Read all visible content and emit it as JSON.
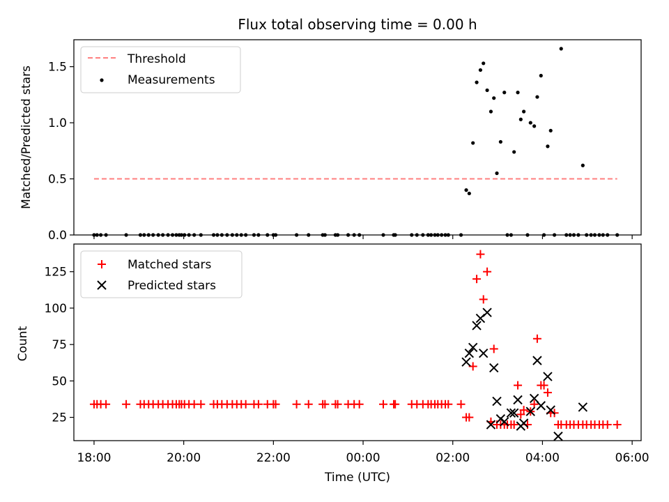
{
  "figure": {
    "title": "Flux total observing time = 0.00 h"
  },
  "chart_data": [
    {
      "type": "scatter",
      "xlabel": "",
      "ylabel": "Matched/Predicted stars",
      "xlim": [
        "17:33",
        "06:12"
      ],
      "ylim": [
        0.0,
        1.74
      ],
      "yticks": [
        0.0,
        0.5,
        1.0,
        1.5
      ],
      "ytick_labels": [
        "0.0",
        "0.5",
        "1.0",
        "1.5"
      ],
      "grid": false,
      "legend": "top-left",
      "threshold": {
        "name": "Threshold",
        "value": 0.5,
        "x_start": "18:00",
        "x_end": "05:40",
        "color": "#ff7f7f",
        "style": "dashed"
      },
      "series": [
        {
          "name": "Measurements",
          "marker": "dot",
          "color": "#000000",
          "points": [
            [
              "18:00",
              0
            ],
            [
              "18:04",
              0
            ],
            [
              "18:09",
              0
            ],
            [
              "18:16",
              0
            ],
            [
              "18:43",
              0
            ],
            [
              "19:02",
              0
            ],
            [
              "19:07",
              0
            ],
            [
              "19:13",
              0
            ],
            [
              "19:19",
              0
            ],
            [
              "19:26",
              0
            ],
            [
              "19:32",
              0
            ],
            [
              "19:39",
              0
            ],
            [
              "19:45",
              0
            ],
            [
              "19:50",
              0
            ],
            [
              "19:54",
              0
            ],
            [
              "19:57",
              0
            ],
            [
              "20:01",
              0
            ],
            [
              "20:07",
              0
            ],
            [
              "20:14",
              0
            ],
            [
              "20:23",
              0
            ],
            [
              "20:40",
              0
            ],
            [
              "20:45",
              0
            ],
            [
              "20:51",
              0
            ],
            [
              "20:58",
              0
            ],
            [
              "21:05",
              0
            ],
            [
              "21:11",
              0
            ],
            [
              "21:17",
              0
            ],
            [
              "21:23",
              0
            ],
            [
              "21:34",
              0
            ],
            [
              "21:40",
              0
            ],
            [
              "21:52",
              0
            ],
            [
              "22:00",
              0
            ],
            [
              "22:03",
              0
            ],
            [
              "22:31",
              0
            ],
            [
              "22:47",
              0
            ],
            [
              "23:06",
              0
            ],
            [
              "23:09",
              0
            ],
            [
              "23:23",
              0
            ],
            [
              "23:26",
              0
            ],
            [
              "23:40",
              0
            ],
            [
              "23:48",
              0
            ],
            [
              "23:55",
              0
            ],
            [
              "00:27",
              0
            ],
            [
              "00:41",
              0
            ],
            [
              "00:43",
              0
            ],
            [
              "01:05",
              0
            ],
            [
              "01:12",
              0
            ],
            [
              "01:20",
              0
            ],
            [
              "01:27",
              0
            ],
            [
              "01:31",
              0
            ],
            [
              "01:36",
              0
            ],
            [
              "01:40",
              0
            ],
            [
              "01:45",
              0
            ],
            [
              "01:50",
              0
            ],
            [
              "01:54",
              0
            ],
            [
              "02:11",
              0
            ],
            [
              "02:18",
              0.4
            ],
            [
              "02:22",
              0.37
            ],
            [
              "02:27",
              0.82
            ],
            [
              "02:32",
              1.36
            ],
            [
              "02:37",
              1.47
            ],
            [
              "02:41",
              1.53
            ],
            [
              "02:46",
              1.29
            ],
            [
              "02:51",
              1.1
            ],
            [
              "02:55",
              1.22
            ],
            [
              "02:59",
              0.55
            ],
            [
              "03:04",
              0.83
            ],
            [
              "03:09",
              1.27
            ],
            [
              "03:13",
              0.0
            ],
            [
              "03:18",
              0.0
            ],
            [
              "03:22",
              0.74
            ],
            [
              "03:27",
              1.27
            ],
            [
              "03:31",
              1.03
            ],
            [
              "03:35",
              1.1
            ],
            [
              "03:40",
              0.0
            ],
            [
              "03:44",
              1.0
            ],
            [
              "03:49",
              0.97
            ],
            [
              "03:53",
              1.23
            ],
            [
              "03:58",
              1.42
            ],
            [
              "04:02",
              0.0
            ],
            [
              "04:07",
              0.79
            ],
            [
              "04:11",
              0.93
            ],
            [
              "04:16",
              0.0
            ],
            [
              "04:25",
              1.66
            ],
            [
              "04:32",
              0.0
            ],
            [
              "04:37",
              0.0
            ],
            [
              "04:42",
              0.0
            ],
            [
              "04:48",
              0.0
            ],
            [
              "04:54",
              0.62
            ],
            [
              "04:59",
              0.0
            ],
            [
              "05:05",
              0.0
            ],
            [
              "05:10",
              0.0
            ],
            [
              "05:16",
              0.0
            ],
            [
              "05:21",
              0.0
            ],
            [
              "05:27",
              0.0
            ],
            [
              "05:40",
              0.0
            ]
          ]
        }
      ]
    },
    {
      "type": "scatter",
      "xlabel": "Time (UTC)",
      "ylabel": "Count",
      "xlim": [
        "17:33",
        "06:12"
      ],
      "ylim": [
        9,
        144
      ],
      "xticks": [
        "18:00",
        "20:00",
        "22:00",
        "00:00",
        "02:00",
        "04:00",
        "06:00"
      ],
      "yticks": [
        25,
        50,
        75,
        100,
        125
      ],
      "grid": false,
      "legend": "top-left",
      "series": [
        {
          "name": "Matched stars",
          "marker": "plus",
          "color": "#ff0000",
          "points": [
            [
              "18:00",
              34
            ],
            [
              "18:04",
              34
            ],
            [
              "18:09",
              34
            ],
            [
              "18:16",
              34
            ],
            [
              "18:43",
              34
            ],
            [
              "19:02",
              34
            ],
            [
              "19:07",
              34
            ],
            [
              "19:13",
              34
            ],
            [
              "19:19",
              34
            ],
            [
              "19:26",
              34
            ],
            [
              "19:32",
              34
            ],
            [
              "19:39",
              34
            ],
            [
              "19:45",
              34
            ],
            [
              "19:50",
              34
            ],
            [
              "19:54",
              34
            ],
            [
              "19:57",
              34
            ],
            [
              "20:01",
              34
            ],
            [
              "20:07",
              34
            ],
            [
              "20:14",
              34
            ],
            [
              "20:23",
              34
            ],
            [
              "20:40",
              34
            ],
            [
              "20:45",
              34
            ],
            [
              "20:51",
              34
            ],
            [
              "20:58",
              34
            ],
            [
              "21:05",
              34
            ],
            [
              "21:11",
              34
            ],
            [
              "21:17",
              34
            ],
            [
              "21:23",
              34
            ],
            [
              "21:34",
              34
            ],
            [
              "21:40",
              34
            ],
            [
              "21:52",
              34
            ],
            [
              "22:00",
              34
            ],
            [
              "22:03",
              34
            ],
            [
              "22:31",
              34
            ],
            [
              "22:47",
              34
            ],
            [
              "23:06",
              34
            ],
            [
              "23:09",
              34
            ],
            [
              "23:23",
              34
            ],
            [
              "23:26",
              34
            ],
            [
              "23:40",
              34
            ],
            [
              "23:48",
              34
            ],
            [
              "23:55",
              34
            ],
            [
              "00:27",
              34
            ],
            [
              "00:41",
              34
            ],
            [
              "00:43",
              34
            ],
            [
              "01:05",
              34
            ],
            [
              "01:12",
              34
            ],
            [
              "01:20",
              34
            ],
            [
              "01:27",
              34
            ],
            [
              "01:31",
              34
            ],
            [
              "01:36",
              34
            ],
            [
              "01:40",
              34
            ],
            [
              "01:45",
              34
            ],
            [
              "01:50",
              34
            ],
            [
              "01:54",
              34
            ],
            [
              "02:11",
              34
            ],
            [
              "02:18",
              25
            ],
            [
              "02:22",
              25
            ],
            [
              "02:27",
              60
            ],
            [
              "02:32",
              120
            ],
            [
              "02:37",
              137
            ],
            [
              "02:41",
              106
            ],
            [
              "02:46",
              125
            ],
            [
              "02:51",
              22
            ],
            [
              "02:55",
              72
            ],
            [
              "02:59",
              20
            ],
            [
              "03:04",
              20
            ],
            [
              "03:09",
              20
            ],
            [
              "03:13",
              20
            ],
            [
              "03:18",
              20
            ],
            [
              "03:22",
              20
            ],
            [
              "03:27",
              47
            ],
            [
              "03:31",
              27
            ],
            [
              "03:35",
              30
            ],
            [
              "03:40",
              20
            ],
            [
              "03:44",
              29
            ],
            [
              "03:49",
              34
            ],
            [
              "03:53",
              79
            ],
            [
              "03:58",
              47
            ],
            [
              "04:02",
              47
            ],
            [
              "04:07",
              42
            ],
            [
              "04:11",
              28
            ],
            [
              "04:16",
              28
            ],
            [
              "04:21",
              20
            ],
            [
              "04:25",
              20
            ],
            [
              "04:32",
              20
            ],
            [
              "04:37",
              20
            ],
            [
              "04:42",
              20
            ],
            [
              "04:48",
              20
            ],
            [
              "04:54",
              20
            ],
            [
              "04:59",
              20
            ],
            [
              "05:05",
              20
            ],
            [
              "05:10",
              20
            ],
            [
              "05:16",
              20
            ],
            [
              "05:21",
              20
            ],
            [
              "05:27",
              20
            ],
            [
              "05:40",
              20
            ]
          ]
        },
        {
          "name": "Predicted stars",
          "marker": "x",
          "color": "#000000",
          "points": [
            [
              "02:18",
              63
            ],
            [
              "02:22",
              69
            ],
            [
              "02:27",
              73
            ],
            [
              "02:32",
              88
            ],
            [
              "02:37",
              93
            ],
            [
              "02:41",
              69
            ],
            [
              "02:46",
              97
            ],
            [
              "02:51",
              20
            ],
            [
              "02:55",
              59
            ],
            [
              "02:59",
              36
            ],
            [
              "03:04",
              24
            ],
            [
              "03:09",
              22
            ],
            [
              "03:18",
              28
            ],
            [
              "03:22",
              28
            ],
            [
              "03:27",
              37
            ],
            [
              "03:31",
              19
            ],
            [
              "03:35",
              21
            ],
            [
              "03:44",
              29
            ],
            [
              "03:49",
              38
            ],
            [
              "03:53",
              64
            ],
            [
              "03:58",
              33
            ],
            [
              "04:07",
              53
            ],
            [
              "04:11",
              30
            ],
            [
              "04:21",
              12
            ],
            [
              "04:54",
              32
            ]
          ]
        }
      ]
    }
  ]
}
